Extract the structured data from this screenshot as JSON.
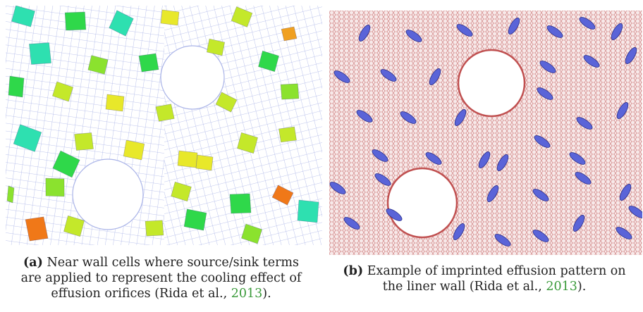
{
  "figure": {
    "panel_a": {
      "caption_label": "(a)",
      "caption_line1": "Near wall cells where source/sink terms",
      "caption_line2": "are applied to represent the cooling effect of",
      "caption_line3_pre": "effusion orifices (Rida et al., ",
      "caption_year": "2013",
      "caption_line3_post": ")."
    },
    "panel_b": {
      "caption_label": "(b)",
      "caption_line1": "Example of imprinted effusion pattern on",
      "caption_line2_pre": "the liner wall (Rida et al., ",
      "caption_year": "2013",
      "caption_line2_post": ")."
    }
  },
  "colors": {
    "mesh_a": "#aab4e8",
    "mesh_b": "#c97070",
    "orifice_b": "#5a64d8",
    "cells": [
      "#2ee0b0",
      "#2fd84a",
      "#8be22e",
      "#c4e82a",
      "#e8e82a",
      "#f0a020",
      "#f07818"
    ]
  }
}
